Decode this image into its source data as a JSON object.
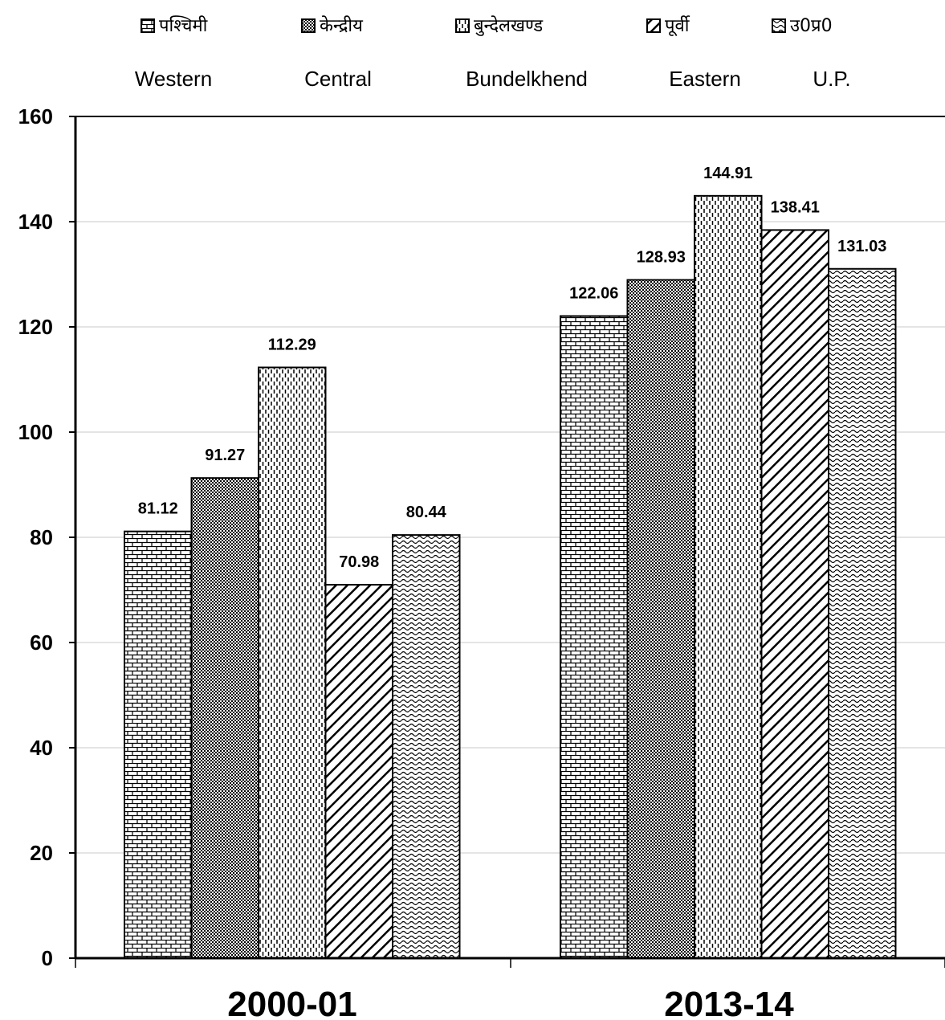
{
  "chart_data": {
    "type": "bar",
    "categories": [
      "2000-01",
      "2013-14"
    ],
    "series": [
      {
        "name": "पश्चिमी",
        "name_en": "Western",
        "pattern": "brick",
        "values": [
          81.12,
          122.06
        ]
      },
      {
        "name": "केन्द्रीय",
        "name_en": "Central",
        "pattern": "checker",
        "values": [
          91.27,
          128.93
        ]
      },
      {
        "name": "बुन्देलखण्ड",
        "name_en": "Bundelkhend",
        "pattern": "dashes",
        "values": [
          112.29,
          144.91
        ]
      },
      {
        "name": "पूर्वी",
        "name_en": "Eastern",
        "pattern": "diagonal",
        "values": [
          70.98,
          138.41
        ]
      },
      {
        "name": "उ0प्र0",
        "name_en": "U.P.",
        "pattern": "wave",
        "values": [
          80.44,
          131.03
        ]
      }
    ],
    "data_labels": [
      [
        "81.12",
        "122.06"
      ],
      [
        "91.27",
        "128.93"
      ],
      [
        "112.29",
        "144.91"
      ],
      [
        "70.98",
        "138.41"
      ],
      [
        "80.44",
        "131.03"
      ]
    ],
    "ylim": [
      0,
      160
    ],
    "yticks": [
      "0",
      "20",
      "40",
      "60",
      "80",
      "100",
      "120",
      "140",
      "160"
    ],
    "grid": true,
    "legend_position": "top",
    "title": "",
    "xlabel": "",
    "ylabel": "",
    "colors": {
      "bar_fill": "#ffffff",
      "stroke": "#000000",
      "grid": "#c8c8c8"
    }
  }
}
